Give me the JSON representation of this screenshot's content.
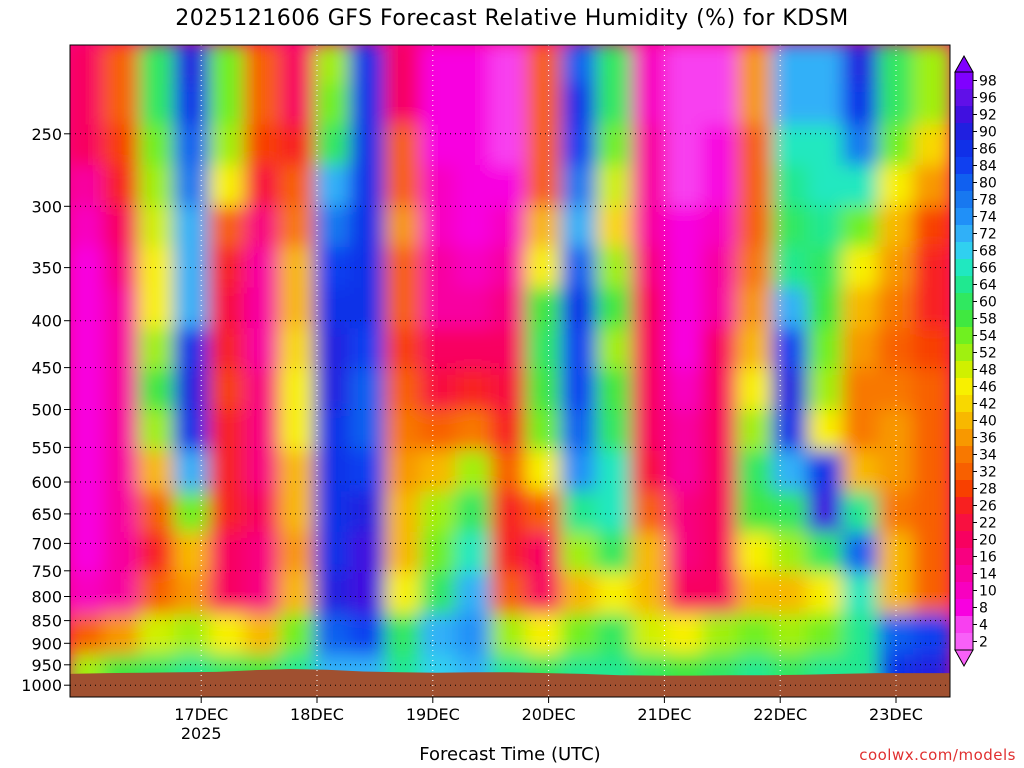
{
  "title": "2025121606 GFS Forecast Relative Humidity (%) for KDSM",
  "credit": "coolwx.com/models",
  "chart_data": {
    "type": "heatmap",
    "title": "2025121606 GFS Forecast Relative Humidity (%) for KDSM",
    "xlabel": "Forecast Time (UTC)",
    "ylabel": "",
    "y_axis": {
      "scale": "pressure-log",
      "reversed": true,
      "range": [
        200,
        1030
      ],
      "ticks": [
        250,
        300,
        350,
        400,
        450,
        500,
        550,
        600,
        650,
        700,
        750,
        800,
        850,
        900,
        950,
        1000
      ],
      "tick_labels": [
        "250",
        "300",
        "350",
        "400",
        "450",
        "500",
        "550",
        "600",
        "650",
        "700",
        "750",
        "800",
        "850",
        "900",
        "950",
        "1000"
      ]
    },
    "x_axis": {
      "range_hours": [
        -16,
        212
      ],
      "ticks_hours": [
        18,
        48,
        78,
        108,
        138,
        168,
        198
      ],
      "tick_labels": [
        "17DEC",
        "18DEC",
        "19DEC",
        "20DEC",
        "21DEC",
        "22DEC",
        "23DEC"
      ],
      "year_label": "2025"
    },
    "grid": true,
    "legend_placement": "right",
    "colorbar": {
      "labels": [
        "98",
        "96",
        "92",
        "90",
        "86",
        "84",
        "80",
        "78",
        "74",
        "72",
        "68",
        "66",
        "64",
        "60",
        "58",
        "54",
        "52",
        "48",
        "46",
        "42",
        "40",
        "36",
        "34",
        "32",
        "28",
        "26",
        "22",
        "20",
        "16",
        "14",
        "10",
        "8",
        "4",
        "2"
      ],
      "colors": [
        "#8000ff",
        "#6010e8",
        "#4010e0",
        "#2020e0",
        "#1030e8",
        "#1040f0",
        "#1060f0",
        "#1878f0",
        "#2090f8",
        "#30b0f8",
        "#30d0f0",
        "#20e8c0",
        "#20e890",
        "#30e860",
        "#40e840",
        "#70f020",
        "#a0f010",
        "#d0f000",
        "#f8f000",
        "#f8d800",
        "#f8b800",
        "#f89800",
        "#f87800",
        "#f86000",
        "#f84000",
        "#f82020",
        "#f81040",
        "#f80060",
        "#f80080",
        "#f800a0",
        "#f800c0",
        "#f800e0",
        "#f840f0",
        "#f860f8"
      ]
    },
    "z": [
      [
        18,
        32,
        60,
        90,
        55,
        30,
        20,
        50,
        85,
        20,
        8,
        6,
        5,
        30,
        80,
        60,
        10,
        4,
        5,
        35,
        70,
        70,
        88,
        60,
        50
      ],
      [
        18,
        32,
        60,
        86,
        55,
        30,
        20,
        55,
        85,
        20,
        8,
        6,
        4,
        30,
        86,
        60,
        10,
        4,
        5,
        35,
        70,
        70,
        86,
        60,
        50
      ],
      [
        20,
        28,
        55,
        80,
        50,
        28,
        25,
        60,
        86,
        30,
        8,
        6,
        4,
        30,
        84,
        55,
        12,
        5,
        6,
        30,
        65,
        66,
        78,
        55,
        42
      ],
      [
        14,
        24,
        50,
        76,
        44,
        22,
        30,
        70,
        86,
        30,
        10,
        6,
        8,
        32,
        76,
        48,
        12,
        5,
        8,
        30,
        62,
        66,
        66,
        46,
        35
      ],
      [
        10,
        18,
        48,
        72,
        30,
        15,
        34,
        78,
        86,
        35,
        10,
        8,
        10,
        40,
        72,
        42,
        14,
        6,
        10,
        32,
        60,
        64,
        54,
        40,
        28
      ],
      [
        8,
        16,
        45,
        70,
        25,
        12,
        38,
        84,
        86,
        32,
        12,
        10,
        14,
        46,
        80,
        50,
        16,
        6,
        12,
        34,
        64,
        60,
        44,
        36,
        26
      ],
      [
        6,
        14,
        44,
        70,
        22,
        12,
        40,
        86,
        86,
        30,
        14,
        14,
        16,
        56,
        86,
        56,
        20,
        8,
        14,
        36,
        70,
        56,
        40,
        34,
        24
      ],
      [
        6,
        14,
        50,
        86,
        24,
        14,
        42,
        88,
        84,
        28,
        18,
        18,
        20,
        60,
        82,
        52,
        20,
        8,
        18,
        40,
        84,
        54,
        36,
        32,
        28
      ],
      [
        6,
        14,
        56,
        90,
        28,
        16,
        44,
        88,
        80,
        30,
        22,
        26,
        22,
        58,
        84,
        58,
        20,
        10,
        20,
        46,
        90,
        50,
        34,
        34,
        30
      ],
      [
        6,
        14,
        50,
        86,
        26,
        16,
        44,
        86,
        80,
        34,
        30,
        34,
        24,
        54,
        80,
        60,
        20,
        12,
        20,
        50,
        86,
        46,
        34,
        36,
        30
      ],
      [
        6,
        14,
        40,
        70,
        24,
        16,
        40,
        86,
        84,
        36,
        40,
        50,
        30,
        44,
        74,
        66,
        22,
        14,
        20,
        60,
        70,
        86,
        40,
        36,
        30
      ],
      [
        6,
        14,
        30,
        54,
        24,
        18,
        40,
        86,
        90,
        40,
        50,
        60,
        26,
        30,
        64,
        66,
        30,
        16,
        20,
        56,
        60,
        92,
        62,
        34,
        30
      ],
      [
        8,
        12,
        26,
        40,
        20,
        16,
        36,
        86,
        92,
        40,
        54,
        66,
        24,
        20,
        50,
        60,
        40,
        16,
        20,
        44,
        50,
        60,
        80,
        40,
        30
      ],
      [
        10,
        12,
        30,
        36,
        20,
        16,
        40,
        90,
        92,
        44,
        60,
        70,
        30,
        20,
        40,
        44,
        40,
        18,
        20,
        40,
        40,
        44,
        66,
        40,
        32
      ],
      [
        30,
        36,
        48,
        52,
        46,
        40,
        54,
        80,
        84,
        60,
        70,
        74,
        52,
        46,
        54,
        60,
        48,
        44,
        50,
        54,
        52,
        54,
        62,
        80,
        84
      ],
      [
        50,
        56,
        60,
        62,
        60,
        58,
        62,
        70,
        72,
        64,
        68,
        70,
        62,
        60,
        62,
        64,
        60,
        58,
        60,
        62,
        60,
        62,
        64,
        86,
        90
      ]
    ]
  }
}
